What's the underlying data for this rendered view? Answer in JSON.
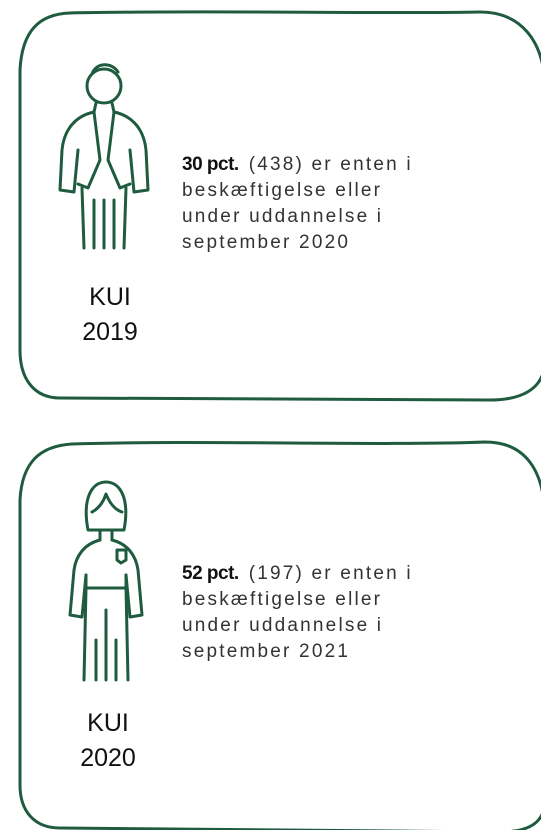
{
  "cards": [
    {
      "label_lines": [
        "KUI",
        "2019"
      ],
      "highlight": "30 pct.",
      "lines": [
        "(438) er enten i",
        "beskæftigelse eller",
        "under uddannelse i",
        "september 2020"
      ]
    },
    {
      "label_lines": [
        "KUI",
        "2020"
      ],
      "highlight": "52 pct.",
      "lines": [
        "(197) er enten i",
        "beskæftigelse eller",
        "under uddannelse i",
        "september 2021"
      ]
    }
  ]
}
